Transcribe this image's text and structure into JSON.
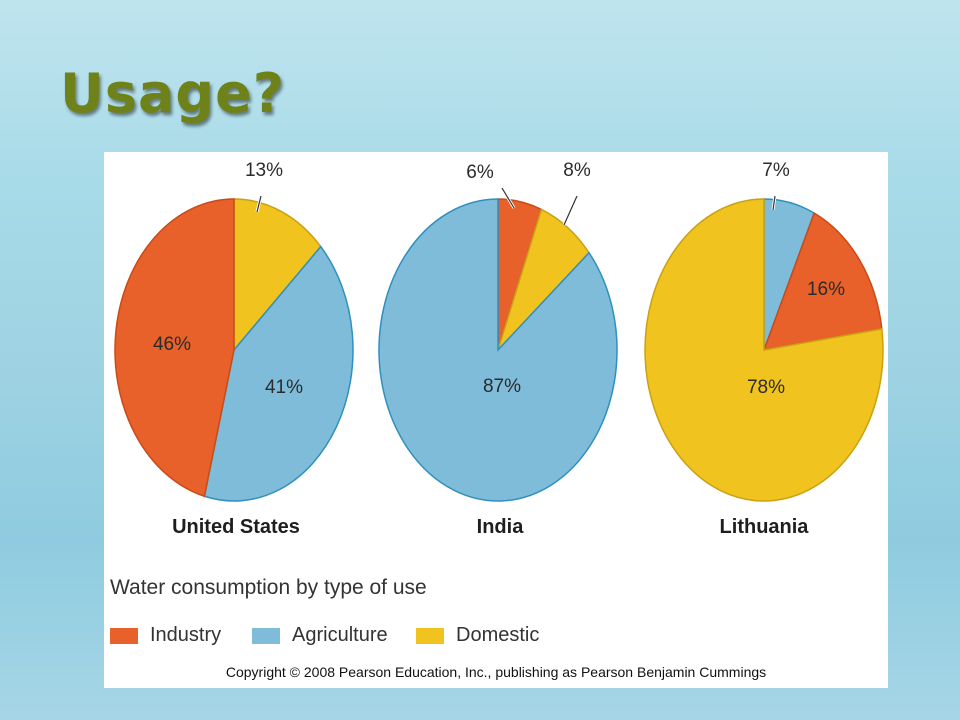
{
  "slide": {
    "title": "Usage?"
  },
  "colors": {
    "industry": "#e8602a",
    "agriculture": "#7fbcd9",
    "domestic": "#f0c31f"
  },
  "chart_data": [
    {
      "type": "pie",
      "title": "United States",
      "slices": [
        {
          "category": "Industry",
          "label": "46%",
          "value": 46
        },
        {
          "category": "Agriculture",
          "label": "41%",
          "value": 41
        },
        {
          "category": "Domestic",
          "label": "13%",
          "value": 13
        }
      ]
    },
    {
      "type": "pie",
      "title": "India",
      "slices": [
        {
          "category": "Industry",
          "label": "6%",
          "value": 6
        },
        {
          "category": "Agriculture",
          "label": "87%",
          "value": 87
        },
        {
          "category": "Domestic",
          "label": "8%",
          "value": 8
        }
      ]
    },
    {
      "type": "pie",
      "title": "Lithuania",
      "slices": [
        {
          "category": "Industry",
          "label": "16%",
          "value": 16
        },
        {
          "category": "Agriculture",
          "label": "7%",
          "value": 7
        },
        {
          "category": "Domestic",
          "label": "78%",
          "value": 78
        }
      ]
    }
  ],
  "legend": {
    "title": "Water consumption by type of use",
    "items": [
      "Industry",
      "Agriculture",
      "Domestic"
    ]
  },
  "copyright": "Copyright © 2008 Pearson Education, Inc., publishing as Pearson Benjamin Cummings"
}
